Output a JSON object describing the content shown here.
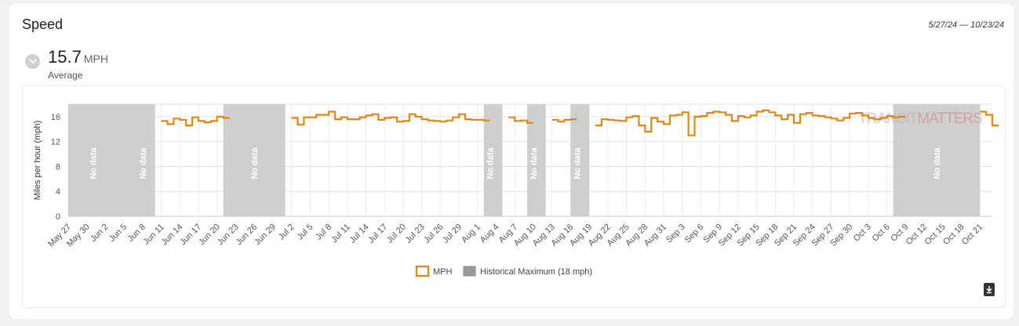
{
  "header": {
    "title": "Speed",
    "date_range": "5/27/24 — 10/23/24",
    "value": "15.7",
    "unit": "MPH",
    "label": "Average"
  },
  "watermark": {
    "part1": "TRANSIT",
    "part2": "MATTERS"
  },
  "chart_data": {
    "type": "line",
    "ylabel": "Miles per hour (mph)",
    "ylim": [
      0,
      18
    ],
    "yticks": [
      0,
      4,
      8,
      12,
      16
    ],
    "grid": true,
    "legend_position": "bottom-center",
    "x_start": "2024-05-27",
    "x_end": "2024-10-23",
    "xticks": [
      "May 27",
      "May 30",
      "Jun 2",
      "Jun 5",
      "Jun 8",
      "Jun 11",
      "Jun 14",
      "Jun 17",
      "Jun 20",
      "Jun 23",
      "Jun 26",
      "Jun 29",
      "Jul 2",
      "Jul 5",
      "Jul 8",
      "Jul 11",
      "Jul 14",
      "Jul 17",
      "Jul 20",
      "Jul 23",
      "Jul 26",
      "Jul 29",
      "Aug 1",
      "Aug 4",
      "Aug 7",
      "Aug 10",
      "Aug 13",
      "Aug 16",
      "Aug 19",
      "Aug 22",
      "Aug 25",
      "Aug 28",
      "Aug 31",
      "Sep 3",
      "Sep 6",
      "Sep 9",
      "Sep 12",
      "Sep 15",
      "Sep 18",
      "Sep 21",
      "Sep 24",
      "Sep 27",
      "Sep 30",
      "Oct 3",
      "Oct 6",
      "Oct 9",
      "Oct 12",
      "Oct 15",
      "Oct 18",
      "Oct 21"
    ],
    "legend": [
      {
        "name": "MPH",
        "color": "#e8850e",
        "style": "outline"
      },
      {
        "name": "Historical Maximum (18 mph)",
        "color": "#999999",
        "style": "filled"
      }
    ],
    "no_data_label": "No data",
    "no_data_ranges": [
      {
        "from": "2024-05-27",
        "to": "2024-06-10"
      },
      {
        "from": "2024-06-21",
        "to": "2024-07-01"
      },
      {
        "from": "2024-08-02",
        "to": "2024-08-05"
      },
      {
        "from": "2024-08-09",
        "to": "2024-08-12"
      },
      {
        "from": "2024-08-16",
        "to": "2024-08-19"
      },
      {
        "from": "2024-10-07",
        "to": "2024-10-21"
      }
    ],
    "no_data_labels": [
      {
        "date": "2024-05-31",
        "text": "No data"
      },
      {
        "date": "2024-06-08",
        "text": "No data"
      },
      {
        "date": "2024-06-26",
        "text": "No data"
      },
      {
        "date": "2024-08-03",
        "text": "No data"
      },
      {
        "date": "2024-08-10",
        "text": "No data"
      },
      {
        "date": "2024-08-17",
        "text": "No data"
      },
      {
        "date": "2024-10-14",
        "text": "No data"
      }
    ],
    "series": [
      {
        "name": "MPH",
        "color": "#e8850e",
        "segments": [
          [
            15.3,
            14.8,
            15.7,
            15.5,
            14.6,
            15.9,
            15.3,
            15.1,
            15.3,
            16.0,
            15.8
          ],
          [
            15.8,
            14.7,
            15.9,
            15.9,
            16.3,
            16.3,
            16.8,
            15.6,
            15.9,
            15.6,
            15.6,
            15.9,
            16.2,
            16.4,
            15.5,
            15.8,
            15.9,
            15.2,
            15.3,
            16.4,
            16.0,
            15.6,
            15.4,
            15.3,
            15.2,
            15.4,
            15.9,
            16.4,
            15.6,
            15.5,
            15.5,
            15.4
          ],
          [
            15.9,
            15.3,
            15.4,
            15.0
          ],
          [
            15.5,
            15.2,
            15.5,
            15.6
          ],
          [
            14.6,
            15.6,
            15.5,
            15.4,
            15.3,
            15.9,
            16.1,
            14.6,
            13.6,
            15.8,
            15.2,
            14.8,
            16.2,
            16.3,
            16.7,
            13.0,
            16.0,
            16.1,
            16.6,
            16.8,
            16.7,
            16.3,
            15.3,
            16.1,
            15.9,
            16.2,
            16.8,
            17.0,
            16.7,
            16.2,
            15.6,
            16.3,
            15.0,
            16.4,
            16.6,
            16.2,
            16.1,
            15.9,
            15.7,
            15.4,
            15.8,
            16.5,
            16.6,
            16.2,
            15.8,
            15.6,
            15.8,
            16.1,
            15.9,
            16.0
          ],
          [
            16.8,
            16.3,
            14.6
          ]
        ],
        "segment_starts": [
          "2024-06-11",
          "2024-07-02",
          "2024-08-06",
          "2024-08-13",
          "2024-08-20",
          "2024-10-21"
        ]
      }
    ]
  }
}
